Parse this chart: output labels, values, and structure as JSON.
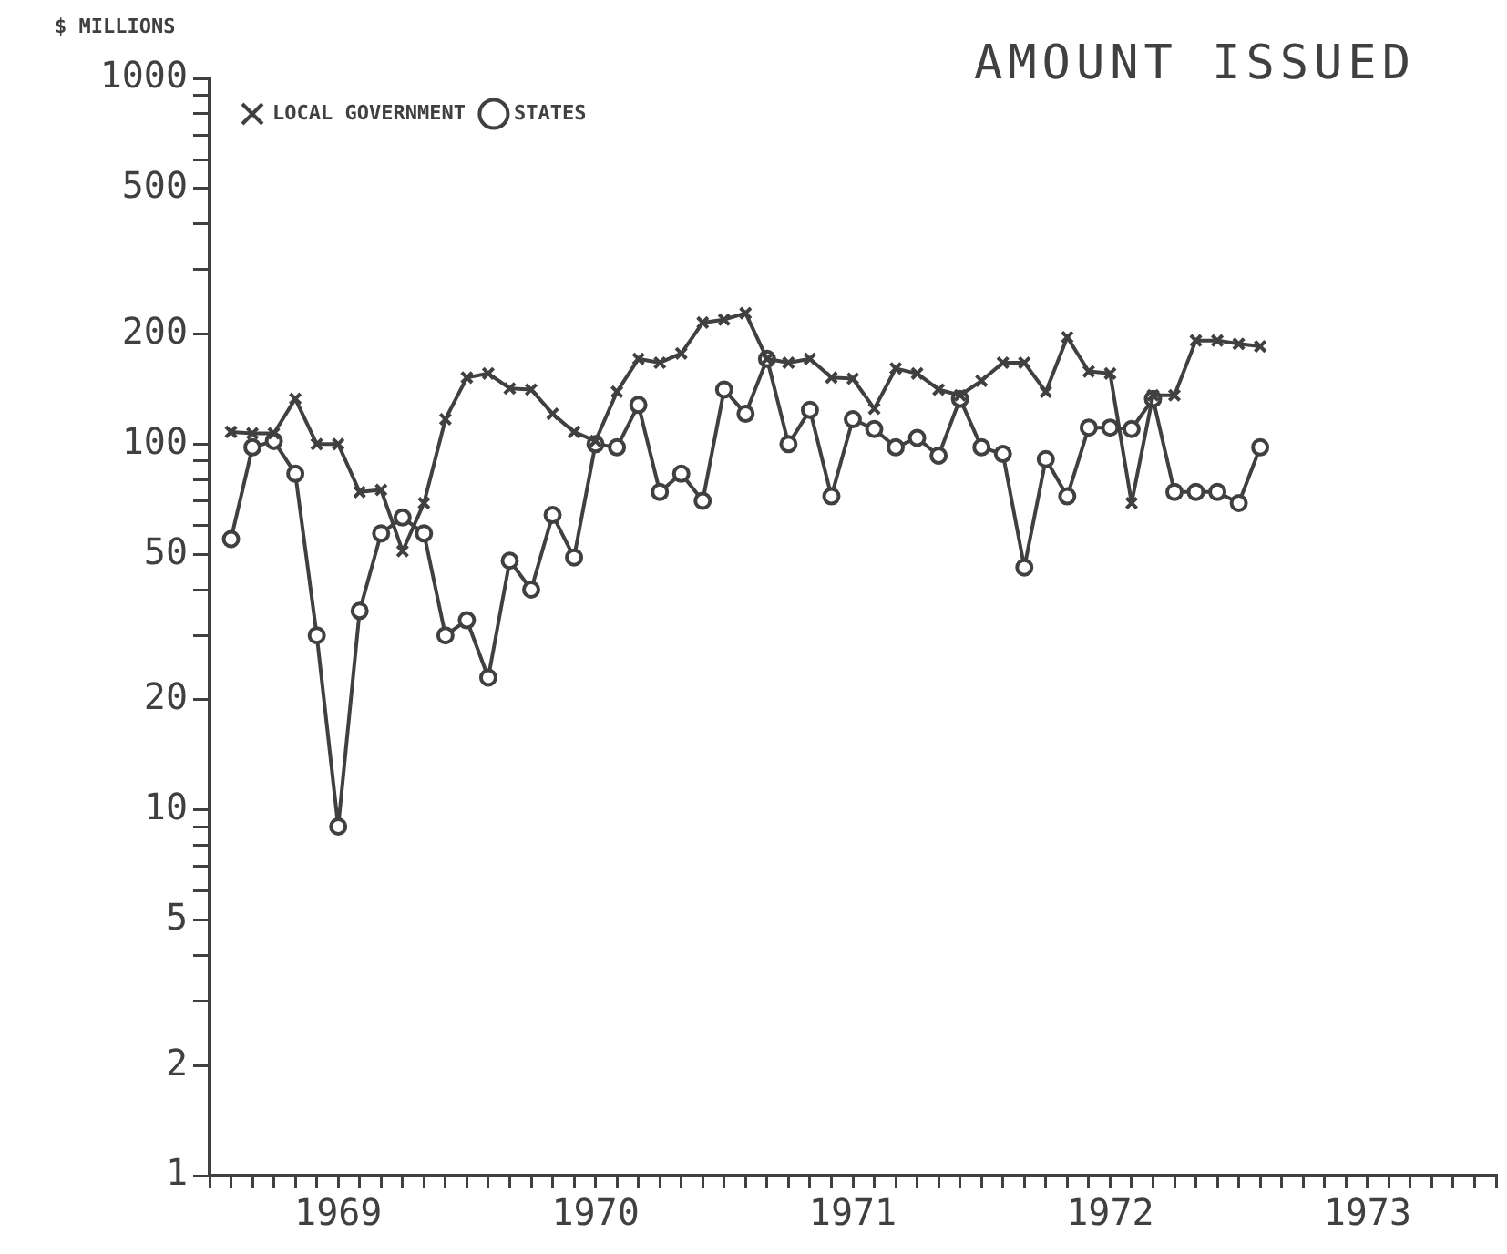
{
  "chart_data": {
    "type": "line",
    "title": "AMOUNT ISSUED",
    "ylabel": "$ MILLIONS",
    "log": "y",
    "grid": false,
    "legend": "top left",
    "line_style": "solid",
    "x": [
      "1969-02",
      "1969-03",
      "1969-04",
      "1969-05",
      "1969-06",
      "1969-07",
      "1969-08",
      "1969-09",
      "1969-10",
      "1969-11",
      "1969-12",
      "1970-01",
      "1970-02",
      "1970-03",
      "1970-04",
      "1970-05",
      "1970-06",
      "1970-07",
      "1970-08",
      "1970-09",
      "1970-10",
      "1970-11",
      "1970-12",
      "1971-01",
      "1971-02",
      "1971-03",
      "1971-04",
      "1971-05",
      "1971-06",
      "1971-07",
      "1971-08",
      "1971-09",
      "1971-10",
      "1971-11",
      "1971-12",
      "1972-01",
      "1972-02",
      "1972-03",
      "1972-04",
      "1972-05",
      "1972-06",
      "1972-07",
      "1972-08",
      "1972-09",
      "1972-10",
      "1972-11",
      "1972-12",
      "1973-01",
      "1973-02"
    ],
    "series": [
      {
        "name": "STATES",
        "color": "#404040",
        "marker": "circle",
        "values": [
          55,
          98,
          102,
          83,
          30,
          9,
          35,
          57,
          63,
          57,
          30,
          33,
          23,
          48,
          40,
          64,
          49,
          100,
          98,
          128,
          74,
          83,
          70,
          141,
          121,
          171,
          100,
          124,
          72,
          117,
          110,
          98,
          104,
          93,
          133,
          98,
          94,
          46,
          91,
          72,
          111,
          111,
          110,
          133,
          74,
          74,
          74,
          69,
          98
        ]
      },
      {
        "name": "LOCAL GOVERNMENT",
        "color": "#404040",
        "marker": "cross",
        "values": [
          108,
          107,
          107,
          133,
          100,
          100,
          74,
          75,
          51,
          69,
          117,
          152,
          156,
          142,
          141,
          121,
          108,
          102,
          139,
          171,
          167,
          177,
          215,
          219,
          228,
          171,
          167,
          171,
          152,
          151,
          125,
          161,
          156,
          141,
          136,
          149,
          167,
          167,
          139,
          196,
          158,
          156,
          69,
          136,
          136,
          192,
          192,
          188,
          185
        ]
      }
    ],
    "xlim": [
      "1969-01",
      "1974-01"
    ],
    "xticks": [
      {
        "value": "1969-01",
        "label": null
      },
      {
        "value": "1969-02",
        "label": null
      },
      {
        "value": "1969-03",
        "label": null
      },
      {
        "value": "1969-04",
        "label": null
      },
      {
        "value": "1969-05",
        "label": null
      },
      {
        "value": "1969-06",
        "label": null
      },
      {
        "value": "1969-07",
        "label": "1969"
      },
      {
        "value": "1969-08",
        "label": null
      },
      {
        "value": "1969-09",
        "label": null
      },
      {
        "value": "1969-10",
        "label": null
      },
      {
        "value": "1969-11",
        "label": null
      },
      {
        "value": "1969-12",
        "label": null
      },
      {
        "value": "1970-01",
        "label": null
      },
      {
        "value": "1970-02",
        "label": null
      },
      {
        "value": "1970-03",
        "label": null
      },
      {
        "value": "1970-04",
        "label": null
      },
      {
        "value": "1970-05",
        "label": null
      },
      {
        "value": "1970-06",
        "label": null
      },
      {
        "value": "1970-07",
        "label": "1970"
      },
      {
        "value": "1970-08",
        "label": null
      },
      {
        "value": "1970-09",
        "label": null
      },
      {
        "value": "1970-10",
        "label": null
      },
      {
        "value": "1970-11",
        "label": null
      },
      {
        "value": "1970-12",
        "label": null
      },
      {
        "value": "1971-01",
        "label": null
      },
      {
        "value": "1971-02",
        "label": null
      },
      {
        "value": "1971-03",
        "label": null
      },
      {
        "value": "1971-04",
        "label": null
      },
      {
        "value": "1971-05",
        "label": null
      },
      {
        "value": "1971-06",
        "label": null
      },
      {
        "value": "1971-07",
        "label": "1971"
      },
      {
        "value": "1971-08",
        "label": null
      },
      {
        "value": "1971-09",
        "label": null
      },
      {
        "value": "1971-10",
        "label": null
      },
      {
        "value": "1971-11",
        "label": null
      },
      {
        "value": "1971-12",
        "label": null
      },
      {
        "value": "1972-01",
        "label": null
      },
      {
        "value": "1972-02",
        "label": null
      },
      {
        "value": "1972-03",
        "label": null
      },
      {
        "value": "1972-04",
        "label": null
      },
      {
        "value": "1972-05",
        "label": null
      },
      {
        "value": "1972-06",
        "label": null
      },
      {
        "value": "1972-07",
        "label": "1972"
      },
      {
        "value": "1972-08",
        "label": null
      },
      {
        "value": "1972-09",
        "label": null
      },
      {
        "value": "1972-10",
        "label": null
      },
      {
        "value": "1972-11",
        "label": null
      },
      {
        "value": "1972-12",
        "label": null
      },
      {
        "value": "1973-01",
        "label": null
      },
      {
        "value": "1973-02",
        "label": null
      },
      {
        "value": "1973-03",
        "label": null
      },
      {
        "value": "1973-04",
        "label": null
      },
      {
        "value": "1973-05",
        "label": null
      },
      {
        "value": "1973-06",
        "label": null
      },
      {
        "value": "1973-07",
        "label": "1973"
      },
      {
        "value": "1973-08",
        "label": null
      },
      {
        "value": "1973-09",
        "label": null
      },
      {
        "value": "1973-10",
        "label": null
      },
      {
        "value": "1973-11",
        "label": null
      },
      {
        "value": "1973-12",
        "label": null
      },
      {
        "value": "1974-01",
        "label": null
      }
    ],
    "ylim": [
      1,
      1000
    ],
    "yticks": [
      1,
      2,
      {
        "value": 3,
        "label": null
      },
      {
        "value": 4,
        "label": null
      },
      5,
      {
        "value": 6,
        "label": null
      },
      {
        "value": 7,
        "label": null
      },
      {
        "value": 8,
        "label": null
      },
      {
        "value": 9,
        "label": null
      },
      10,
      20,
      {
        "value": 30,
        "label": null
      },
      {
        "value": 40,
        "label": null
      },
      50,
      {
        "value": 60,
        "label": null
      },
      {
        "value": 70,
        "label": null
      },
      {
        "value": 80,
        "label": null
      },
      {
        "value": 90,
        "label": null
      },
      100,
      200,
      {
        "value": 300,
        "label": null
      },
      {
        "value": 400,
        "label": null
      },
      500,
      {
        "value": 600,
        "label": null
      },
      {
        "value": 700,
        "label": null
      },
      {
        "value": 800,
        "label": null
      },
      {
        "value": 900,
        "label": null
      },
      1000
    ]
  }
}
